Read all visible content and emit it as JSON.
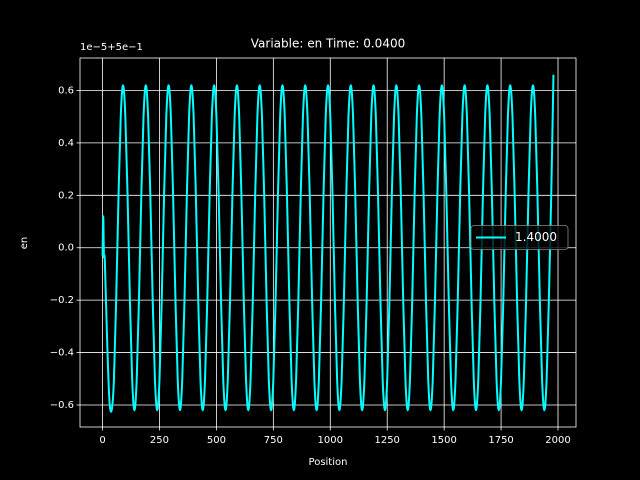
{
  "chart_data": {
    "type": "line",
    "title": "Variable: en Time: 0.0400",
    "xlabel": "Position",
    "ylabel": "en",
    "y_offset_label": "1e−5+5e−1",
    "x": [
      0,
      3,
      6,
      10,
      20,
      30,
      40,
      50,
      60,
      70,
      80,
      90,
      100,
      110,
      120,
      130,
      140,
      150,
      160,
      170,
      180,
      190,
      200,
      210,
      220,
      230,
      240,
      250,
      260,
      270,
      280,
      290,
      300,
      310,
      320,
      330,
      340,
      350,
      360,
      370,
      380,
      390,
      400,
      410,
      420,
      430,
      440,
      450,
      460,
      470,
      480,
      490,
      500,
      510,
      520,
      530,
      540,
      550,
      560,
      570,
      580,
      590,
      600,
      610,
      620,
      630,
      640,
      650,
      660,
      670,
      680,
      690,
      700,
      710,
      720,
      730,
      740,
      750,
      760,
      770,
      780,
      790,
      800,
      810,
      820,
      830,
      840,
      850,
      860,
      870,
      880,
      890,
      900,
      910,
      920,
      930,
      940,
      950,
      960,
      970,
      980,
      990,
      1000,
      1010,
      1020,
      1030,
      1040,
      1050,
      1060,
      1070,
      1080,
      1090,
      1100,
      1110,
      1120,
      1130,
      1140,
      1150,
      1160,
      1170,
      1180,
      1190,
      1200,
      1210,
      1220,
      1230,
      1240,
      1250,
      1260,
      1270,
      1280,
      1290,
      1300,
      1310,
      1320,
      1330,
      1340,
      1350,
      1360,
      1370,
      1380,
      1390,
      1400,
      1410,
      1420,
      1430,
      1440,
      1450,
      1460,
      1470,
      1480,
      1490,
      1500,
      1510,
      1520,
      1530,
      1540,
      1550,
      1560,
      1570,
      1580,
      1590,
      1600,
      1610,
      1620,
      1630,
      1640,
      1650,
      1660,
      1670,
      1680,
      1690,
      1700,
      1710,
      1720,
      1730,
      1740,
      1750,
      1760,
      1770,
      1780,
      1790,
      1800,
      1810,
      1820,
      1830,
      1840,
      1850,
      1860,
      1870,
      1880,
      1890,
      1900,
      1910,
      1920,
      1930,
      1940,
      1950,
      1960,
      1970,
      1980
    ],
    "series": [
      {
        "name": "1.4000",
        "color": "#00ffff",
        "values": [
          -0.03,
          0.12,
          -0.03,
          -0.05,
          -0.35,
          -0.58,
          -0.62,
          -0.502,
          -0.192,
          0.192,
          0.502,
          0.62,
          0.502,
          0.192,
          -0.192,
          -0.502,
          -0.62,
          -0.502,
          -0.192,
          0.192,
          0.502,
          0.62,
          0.502,
          0.192,
          -0.192,
          -0.502,
          -0.62,
          -0.502,
          -0.192,
          0.192,
          0.502,
          0.62,
          0.502,
          0.192,
          -0.192,
          -0.502,
          -0.62,
          -0.502,
          -0.192,
          0.192,
          0.502,
          0.62,
          0.502,
          0.192,
          -0.192,
          -0.502,
          -0.62,
          -0.502,
          -0.192,
          0.192,
          0.502,
          0.62,
          0.502,
          0.192,
          -0.192,
          -0.502,
          -0.62,
          -0.502,
          -0.192,
          0.192,
          0.502,
          0.62,
          0.502,
          0.192,
          -0.192,
          -0.502,
          -0.62,
          -0.502,
          -0.192,
          0.192,
          0.502,
          0.62,
          0.502,
          0.192,
          -0.192,
          -0.502,
          -0.62,
          -0.502,
          -0.192,
          0.192,
          0.502,
          0.62,
          0.502,
          0.192,
          -0.192,
          -0.502,
          -0.62,
          -0.502,
          -0.192,
          0.192,
          0.502,
          0.62,
          0.502,
          0.192,
          -0.192,
          -0.502,
          -0.62,
          -0.502,
          -0.192,
          0.192,
          0.502,
          0.62,
          0.502,
          0.192,
          -0.192,
          -0.502,
          -0.62,
          -0.502,
          -0.192,
          0.192,
          0.502,
          0.62,
          0.502,
          0.192,
          -0.192,
          -0.502,
          -0.62,
          -0.502,
          -0.192,
          0.192,
          0.502,
          0.62,
          0.502,
          0.192,
          -0.192,
          -0.502,
          -0.62,
          -0.502,
          -0.192,
          0.192,
          0.502,
          0.62,
          0.502,
          0.192,
          -0.192,
          -0.502,
          -0.62,
          -0.502,
          -0.192,
          0.192,
          0.502,
          0.62,
          0.502,
          0.192,
          -0.192,
          -0.502,
          -0.62,
          -0.502,
          -0.192,
          0.192,
          0.502,
          0.62,
          0.502,
          0.192,
          -0.192,
          -0.502,
          -0.62,
          -0.502,
          -0.192,
          0.192,
          0.502,
          0.62,
          0.502,
          0.192,
          -0.192,
          -0.502,
          -0.62,
          -0.502,
          -0.192,
          0.192,
          0.502,
          0.62,
          0.502,
          0.192,
          -0.192,
          -0.502,
          -0.62,
          -0.502,
          -0.192,
          0.192,
          0.502,
          0.62,
          0.502,
          0.192,
          -0.192,
          -0.502,
          -0.62,
          -0.502,
          -0.192,
          0.192,
          0.502,
          0.62,
          0.502,
          0.192,
          -0.192,
          -0.502,
          -0.62,
          -0.502,
          -0.192,
          0.192,
          0.66
        ]
      }
    ],
    "xlim": [
      -99,
      2079
    ],
    "ylim": [
      -0.684,
      0.724
    ],
    "xticks": [
      0,
      250,
      500,
      750,
      1000,
      1250,
      1500,
      1750,
      2000
    ],
    "yticks": [
      {
        "value": -0.6,
        "label": "−0.6"
      },
      {
        "value": -0.4,
        "label": "−0.4"
      },
      {
        "value": -0.2,
        "label": "−0.2"
      },
      {
        "value": 0,
        "label": "0.0"
      },
      0.2,
      0.4,
      0.6
    ],
    "grid": true,
    "legend": "right"
  }
}
